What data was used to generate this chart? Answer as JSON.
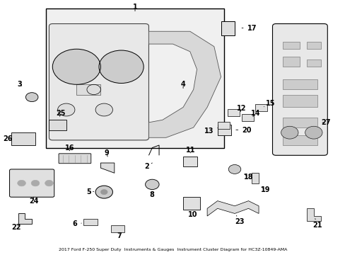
{
  "title": "2017 Ford F-250 Super Duty  Instruments & Gauges  Instrument Cluster Diagram for HC3Z-10849-AMA",
  "bg_color": "#ffffff",
  "font_size": 7
}
